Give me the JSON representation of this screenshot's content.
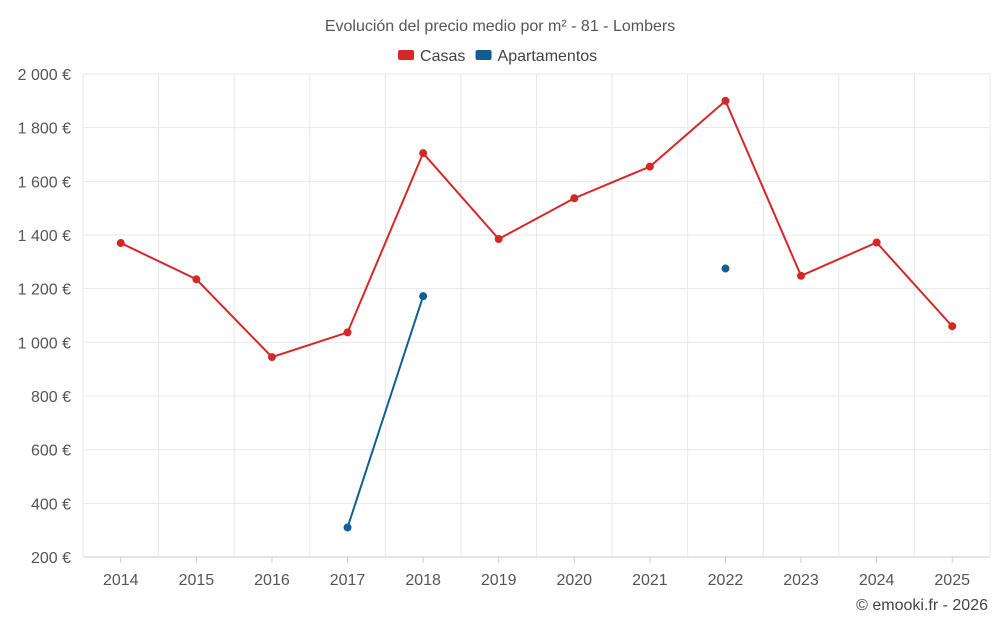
{
  "chart_data": {
    "type": "line",
    "title": "Evolución del precio medio por m² - 81 - Lombers",
    "categories": [
      "2014",
      "2015",
      "2016",
      "2017",
      "2018",
      "2019",
      "2020",
      "2021",
      "2022",
      "2023",
      "2024",
      "2025"
    ],
    "series": [
      {
        "name": "Casas",
        "color": "#d62728",
        "values": [
          1370,
          1235,
          945,
          1037,
          1705,
          1385,
          1537,
          1655,
          1900,
          1248,
          1372,
          1060
        ]
      },
      {
        "name": "Apartamentos",
        "color": "#0f5f96",
        "values": [
          null,
          null,
          null,
          310,
          1172,
          null,
          null,
          null,
          1275,
          null,
          null,
          null
        ]
      }
    ],
    "ylim": [
      200,
      2000
    ],
    "yticks": [
      200,
      400,
      600,
      800,
      1000,
      1200,
      1400,
      1600,
      1800,
      2000
    ],
    "ytick_labels": [
      "200 €",
      "400 €",
      "600 €",
      "800 €",
      "1 000 €",
      "1 200 €",
      "1 400 €",
      "1 600 €",
      "1 800 €",
      "2 000 €"
    ],
    "xlabel": "",
    "ylabel": "",
    "grid": true,
    "legend": "top-center"
  },
  "credit": "© emooki.fr - 2026"
}
